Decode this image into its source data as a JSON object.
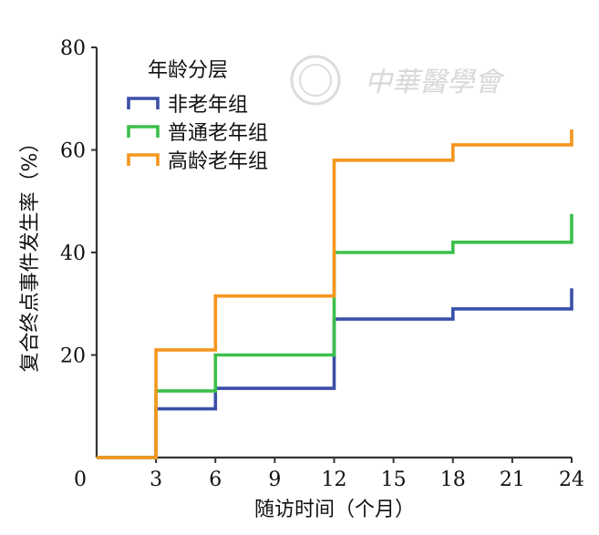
{
  "watermark": {
    "text": "中華醫學會"
  },
  "chart_data": {
    "type": "line",
    "step": true,
    "xlabel": "随访时间（个月）",
    "ylabel": "复合终点事件发生率（%）",
    "xlim": [
      0,
      24
    ],
    "ylim": [
      0,
      80
    ],
    "xticks": [
      0,
      3,
      6,
      9,
      12,
      15,
      18,
      21,
      24
    ],
    "yticks": [
      20,
      40,
      60,
      80
    ],
    "ytick_labels": [
      "20",
      "40",
      "60",
      "80"
    ],
    "xtick_labels": [
      "0",
      "3",
      "6",
      "9",
      "12",
      "15",
      "18",
      "21",
      "24"
    ],
    "grid": false,
    "legend": {
      "title": "年龄分层",
      "position": "top-left"
    },
    "series": [
      {
        "name": "非老年组",
        "color": "#3a4fa8",
        "x": [
          0,
          3,
          3,
          6,
          6,
          12,
          12,
          18,
          18,
          24,
          24
        ],
        "y": [
          0,
          0,
          9.5,
          9.5,
          13.5,
          13.5,
          27,
          27,
          29,
          29,
          33
        ]
      },
      {
        "name": "普通老年组",
        "color": "#3cbf4a",
        "x": [
          0,
          3,
          3,
          6,
          6,
          12,
          12,
          18,
          18,
          24,
          24
        ],
        "y": [
          0,
          0,
          13,
          13,
          20,
          20,
          40,
          40,
          42,
          42,
          47.5
        ]
      },
      {
        "name": "高龄老年组",
        "color": "#f5961e",
        "x": [
          0,
          3,
          3,
          6,
          6,
          12,
          12,
          18,
          18,
          24,
          24
        ],
        "y": [
          0,
          0,
          21,
          21,
          31.5,
          31.5,
          58,
          58,
          61,
          61,
          64
        ]
      }
    ]
  }
}
